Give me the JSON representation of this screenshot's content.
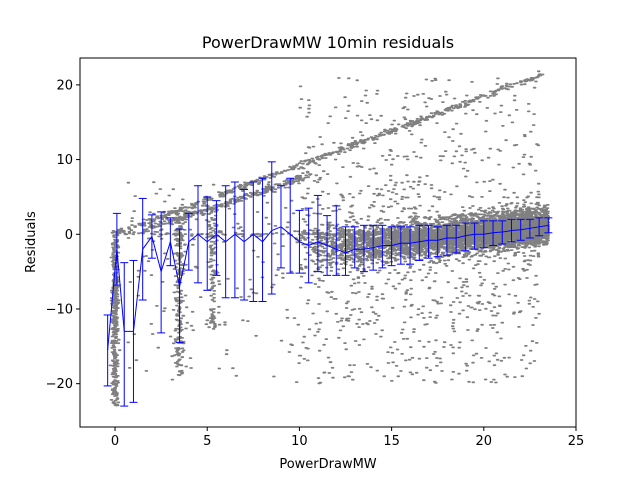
{
  "chart_data": {
    "type": "scatter",
    "title": "PowerDrawMW 10min residuals",
    "xlabel": "PowerDrawMW",
    "ylabel": "Residuals",
    "xlim": [
      -1.9,
      25
    ],
    "ylim": [
      -25.8,
      23.6
    ],
    "xticks": [
      0,
      5,
      10,
      15,
      20,
      25
    ],
    "yticks": [
      -20,
      -10,
      0,
      10,
      20
    ],
    "grid": false,
    "legend": "none",
    "colors": {
      "scatter": "#808080",
      "errorbar": "#0000ff"
    },
    "scatter_bands": [
      {
        "type": "line",
        "x0": 0.0,
        "x1": 23.3,
        "y0": 0.0,
        "y1": 21.5,
        "count": 520,
        "noise": 0.3
      },
      {
        "type": "line",
        "x0": 1.5,
        "x1": 10.5,
        "y0": 0.5,
        "y1": 7.8,
        "count": 260,
        "noise": 0.35
      },
      {
        "type": "vertical",
        "x": 0.0,
        "ymin": -23.0,
        "ymax": 0.5,
        "count": 420,
        "noise": 0.12
      },
      {
        "type": "vertical",
        "x": 3.5,
        "ymin": -19.0,
        "ymax": 2.5,
        "count": 220,
        "noise": 0.2
      },
      {
        "type": "vertical",
        "x": 5.3,
        "ymin": -13.0,
        "ymax": 3.5,
        "count": 110,
        "noise": 0.2
      },
      {
        "type": "dense",
        "xmin": 10.0,
        "xmax": 23.5,
        "count": 4200,
        "center_start": -2.5,
        "center_end": 1.2,
        "spread": 1.7
      },
      {
        "type": "spread",
        "xmin": 10.0,
        "xmax": 23.0,
        "ymin": -20.0,
        "ymax": 21.0,
        "count": 1500
      },
      {
        "type": "spread",
        "xmin": 0.5,
        "xmax": 10.0,
        "ymin": -20.0,
        "ymax": 7.0,
        "count": 240
      }
    ],
    "errorbars": [
      {
        "x": -0.4,
        "y": -15.5,
        "lo": -20.3,
        "hi": -10.8
      },
      {
        "x": 0.1,
        "y": -2.0,
        "lo": -6.8,
        "hi": 2.8
      },
      {
        "x": 0.5,
        "y": -13.0,
        "lo": -23.0,
        "hi": -3.8
      },
      {
        "x": 1.0,
        "y": -13.0,
        "lo": -22.5,
        "hi": -3.5
      },
      {
        "x": 1.5,
        "y": -2.0,
        "lo": -8.8,
        "hi": 4.8
      },
      {
        "x": 2.0,
        "y": -0.3,
        "lo": -3.2,
        "hi": 2.6
      },
      {
        "x": 2.5,
        "y": -5.0,
        "lo": -13.2,
        "hi": 3.0
      },
      {
        "x": 3.0,
        "y": -1.0,
        "lo": -4.2,
        "hi": 2.2
      },
      {
        "x": 3.5,
        "y": -7.0,
        "lo": -14.5,
        "hi": 0.7
      },
      {
        "x": 4.0,
        "y": -1.0,
        "lo": -4.8,
        "hi": 2.8
      },
      {
        "x": 4.5,
        "y": 0.0,
        "lo": -6.5,
        "hi": 6.5
      },
      {
        "x": 5.0,
        "y": -1.0,
        "lo": -7.5,
        "hi": 5.0
      },
      {
        "x": 5.5,
        "y": 0.0,
        "lo": -5.5,
        "hi": 4.5
      },
      {
        "x": 6.0,
        "y": -1.0,
        "lo": -8.5,
        "hi": 6.5
      },
      {
        "x": 6.5,
        "y": 0.0,
        "lo": -8.5,
        "hi": 7.0
      },
      {
        "x": 7.0,
        "y": -1.0,
        "lo": -8.8,
        "hi": 6.0
      },
      {
        "x": 7.5,
        "y": 0.0,
        "lo": -9.0,
        "hi": 7.0
      },
      {
        "x": 8.0,
        "y": -1.0,
        "lo": -9.0,
        "hi": 7.5
      },
      {
        "x": 8.5,
        "y": 0.5,
        "lo": -8.0,
        "hi": 9.7
      },
      {
        "x": 9.0,
        "y": 1.0,
        "lo": -4.5,
        "hi": 6.5
      },
      {
        "x": 9.5,
        "y": 0.0,
        "lo": -5.2,
        "hi": 7.5
      },
      {
        "x": 10.0,
        "y": -1.0,
        "lo": -5.2,
        "hi": 3.2
      },
      {
        "x": 10.5,
        "y": -1.5,
        "lo": -6.5,
        "hi": 3.5
      },
      {
        "x": 11.0,
        "y": -1.0,
        "lo": -5.0,
        "hi": 5.2
      },
      {
        "x": 11.5,
        "y": -1.5,
        "lo": -5.5,
        "hi": 2.5
      },
      {
        "x": 12.0,
        "y": -2.0,
        "lo": -5.5,
        "hi": 3.8
      },
      {
        "x": 12.5,
        "y": -2.5,
        "lo": -5.5,
        "hi": 1.0
      },
      {
        "x": 13.0,
        "y": -2.0,
        "lo": -4.5,
        "hi": 1.0
      },
      {
        "x": 13.5,
        "y": -2.0,
        "lo": -5.0,
        "hi": 1.2
      },
      {
        "x": 14.0,
        "y": -1.8,
        "lo": -4.8,
        "hi": 1.2
      },
      {
        "x": 14.5,
        "y": -1.5,
        "lo": -4.5,
        "hi": 1.2
      },
      {
        "x": 15.0,
        "y": -1.5,
        "lo": -4.2,
        "hi": 1.0
      },
      {
        "x": 15.5,
        "y": -1.2,
        "lo": -4.0,
        "hi": 1.0
      },
      {
        "x": 16.0,
        "y": -1.2,
        "lo": -4.0,
        "hi": 1.0
      },
      {
        "x": 16.5,
        "y": -1.0,
        "lo": -3.5,
        "hi": 1.2
      },
      {
        "x": 17.0,
        "y": -0.8,
        "lo": -3.2,
        "hi": 1.2
      },
      {
        "x": 17.5,
        "y": -0.8,
        "lo": -3.0,
        "hi": 1.0
      },
      {
        "x": 18.0,
        "y": -0.5,
        "lo": -2.8,
        "hi": 1.2
      },
      {
        "x": 18.5,
        "y": -0.5,
        "lo": -2.5,
        "hi": 1.2
      },
      {
        "x": 19.0,
        "y": -0.2,
        "lo": -2.2,
        "hi": 1.5
      },
      {
        "x": 19.5,
        "y": 0.0,
        "lo": -2.0,
        "hi": 1.5
      },
      {
        "x": 20.0,
        "y": 0.0,
        "lo": -1.8,
        "hi": 1.8
      },
      {
        "x": 20.5,
        "y": 0.2,
        "lo": -1.5,
        "hi": 1.8
      },
      {
        "x": 21.0,
        "y": 0.3,
        "lo": -1.3,
        "hi": 1.8
      },
      {
        "x": 21.5,
        "y": 0.5,
        "lo": -1.0,
        "hi": 2.0
      },
      {
        "x": 22.0,
        "y": 0.6,
        "lo": -0.8,
        "hi": 2.0
      },
      {
        "x": 22.5,
        "y": 0.8,
        "lo": -0.5,
        "hi": 2.0
      },
      {
        "x": 23.0,
        "y": 1.0,
        "lo": -0.2,
        "hi": 2.2
      },
      {
        "x": 23.5,
        "y": 1.2,
        "lo": 0.2,
        "hi": 2.2
      }
    ]
  }
}
